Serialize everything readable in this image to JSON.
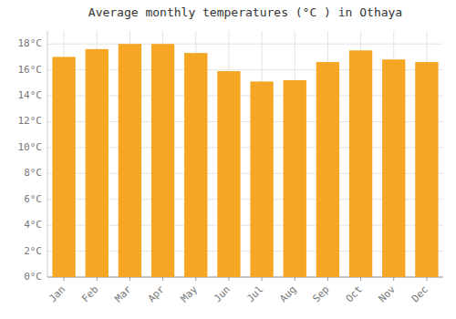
{
  "chart_data": {
    "type": "bar",
    "title": "Average monthly temperatures (°C ) in Othaya",
    "categories": [
      "Jan",
      "Feb",
      "Mar",
      "Apr",
      "May",
      "Jun",
      "Jul",
      "Aug",
      "Sep",
      "Oct",
      "Nov",
      "Dec"
    ],
    "values": [
      17.0,
      17.6,
      18.0,
      18.0,
      17.3,
      15.9,
      15.1,
      15.2,
      16.6,
      17.5,
      16.8,
      16.6
    ],
    "color": "#F5A623",
    "ylim": [
      0,
      19
    ],
    "yticks": [
      {
        "value": 0,
        "label": "0°C"
      },
      {
        "value": 2,
        "label": "2°C"
      },
      {
        "value": 4,
        "label": "4°C"
      },
      {
        "value": 6,
        "label": "6°C"
      },
      {
        "value": 8,
        "label": "8°C"
      },
      {
        "value": 10,
        "label": "10°C"
      },
      {
        "value": 12,
        "label": "12°C"
      },
      {
        "value": 14,
        "label": "14°C"
      },
      {
        "value": 16,
        "label": "16°C"
      },
      {
        "value": 18,
        "label": "18°C"
      }
    ],
    "grid": true
  }
}
